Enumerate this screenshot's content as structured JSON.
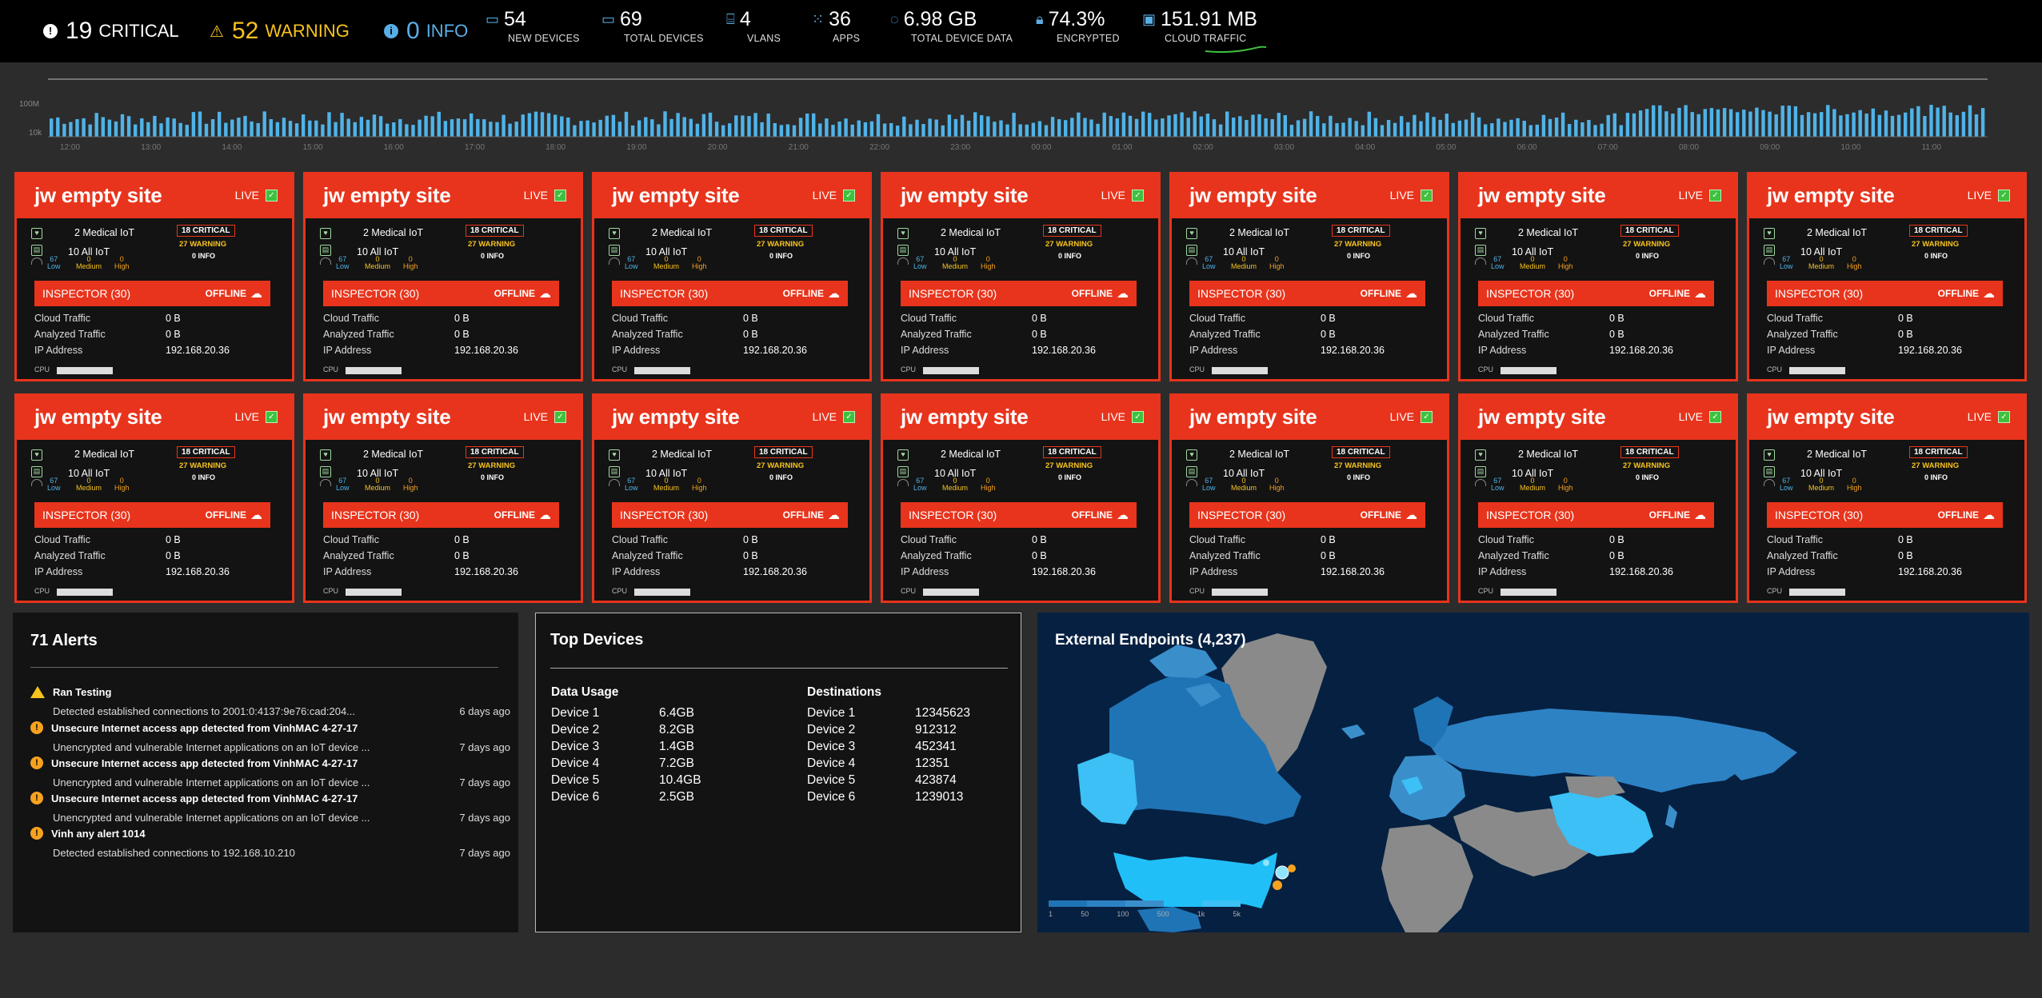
{
  "severity": {
    "critical": {
      "count": "19",
      "label": "CRITICAL"
    },
    "warning": {
      "count": "52",
      "label": "WARNING"
    },
    "info": {
      "count": "0",
      "label": "INFO"
    }
  },
  "stats": [
    {
      "value": "54",
      "label": "NEW DEVICES",
      "icon": "devices-icon"
    },
    {
      "value": "69",
      "label": "TOTAL DEVICES",
      "icon": "devices-icon"
    },
    {
      "value": "4",
      "label": "VLANS",
      "icon": "router-icon"
    },
    {
      "value": "36",
      "label": "APPS",
      "icon": "apps-grid-icon"
    },
    {
      "value": "6.98 GB",
      "label": "TOTAL DEVICE DATA",
      "icon": "donut-icon"
    },
    {
      "value": "74.3%",
      "label": "ENCRYPTED",
      "icon": "lock-icon"
    },
    {
      "value": "151.91 MB",
      "label": "CLOUD TRAFFIC",
      "icon": "cloud-traffic-icon"
    }
  ],
  "timeline": {
    "y_labels": [
      "100M",
      "10k"
    ],
    "x_labels": [
      "12:00",
      "13:00",
      "14:00",
      "15:00",
      "16:00",
      "17:00",
      "18:00",
      "19:00",
      "20:00",
      "21:00",
      "22:00",
      "23:00",
      "00:00",
      "01:00",
      "02:00",
      "03:00",
      "04:00",
      "05:00",
      "06:00",
      "07:00",
      "08:00",
      "09:00",
      "10:00",
      "11:00"
    ],
    "color": "#4fb3e8"
  },
  "site_card": {
    "title": "jw empty site",
    "live_label": "LIVE",
    "medical_iot": "2 Medical IoT",
    "all_iot": "10 All IoT",
    "critical_badge": "18 CRITICAL",
    "warning_text": "27 WARNING",
    "info_text": "0 INFO",
    "risk": [
      {
        "value": "67",
        "label": "Low",
        "color": "#4fb3e8"
      },
      {
        "value": "0",
        "label": "Medium",
        "color": "#f7c31f"
      },
      {
        "value": "0",
        "label": "High",
        "color": "#f7a21f"
      }
    ],
    "inspector_label": "INSPECTOR (30)",
    "inspector_status": "OFFLINE",
    "fields": [
      {
        "label": "Cloud Traffic",
        "value": "0 B"
      },
      {
        "label": "Analyzed Traffic",
        "value": "0 B"
      },
      {
        "label": "IP Address",
        "value": "192.168.20.36"
      }
    ],
    "cpu_label": "CPU"
  },
  "alerts": {
    "title": "71 Alerts",
    "items": [
      {
        "type": "warning",
        "title": "Ran Testing",
        "desc": "Detected established connections to 2001:0:4137:9e76:cad:204...",
        "ago": "6 days ago"
      },
      {
        "type": "alert",
        "title": "Unsecure Internet access app detected from VinhMAC 4-27-17",
        "desc": "Unencrypted and vulnerable Internet applications on an IoT device ...",
        "ago": "7 days ago"
      },
      {
        "type": "alert",
        "title": "Unsecure Internet access app detected from VinhMAC 4-27-17",
        "desc": "Unencrypted and vulnerable Internet applications on an IoT device ...",
        "ago": "7 days ago"
      },
      {
        "type": "alert",
        "title": "Unsecure Internet access app detected from VinhMAC 4-27-17",
        "desc": "Unencrypted and vulnerable Internet applications on an IoT device ...",
        "ago": "7 days ago"
      },
      {
        "type": "alert",
        "title": "Vinh any alert 1014",
        "desc": "Detected established connections to 192.168.10.210",
        "ago": "7 days ago"
      }
    ]
  },
  "top_devices": {
    "title": "Top Devices",
    "data_usage": {
      "header": "Data Usage",
      "rows": [
        [
          "Device 1",
          "6.4GB"
        ],
        [
          "Device 2",
          "8.2GB"
        ],
        [
          "Device 3",
          "1.4GB"
        ],
        [
          "Device 4",
          "7.2GB"
        ],
        [
          "Device 5",
          "10.4GB"
        ],
        [
          "Device 6",
          "2.5GB"
        ]
      ]
    },
    "destinations": {
      "header": "Destinations",
      "rows": [
        [
          "Device 1",
          "12345623"
        ],
        [
          "Device 2",
          "912312"
        ],
        [
          "Device 3",
          "452341"
        ],
        [
          "Device 4",
          "12351"
        ],
        [
          "Device 5",
          "423874"
        ],
        [
          "Device 6",
          "1239013"
        ]
      ]
    }
  },
  "endpoints": {
    "title": "External Endpoints (4,237)",
    "legend": [
      "1",
      "50",
      "100",
      "500",
      "1k",
      "5k"
    ]
  }
}
